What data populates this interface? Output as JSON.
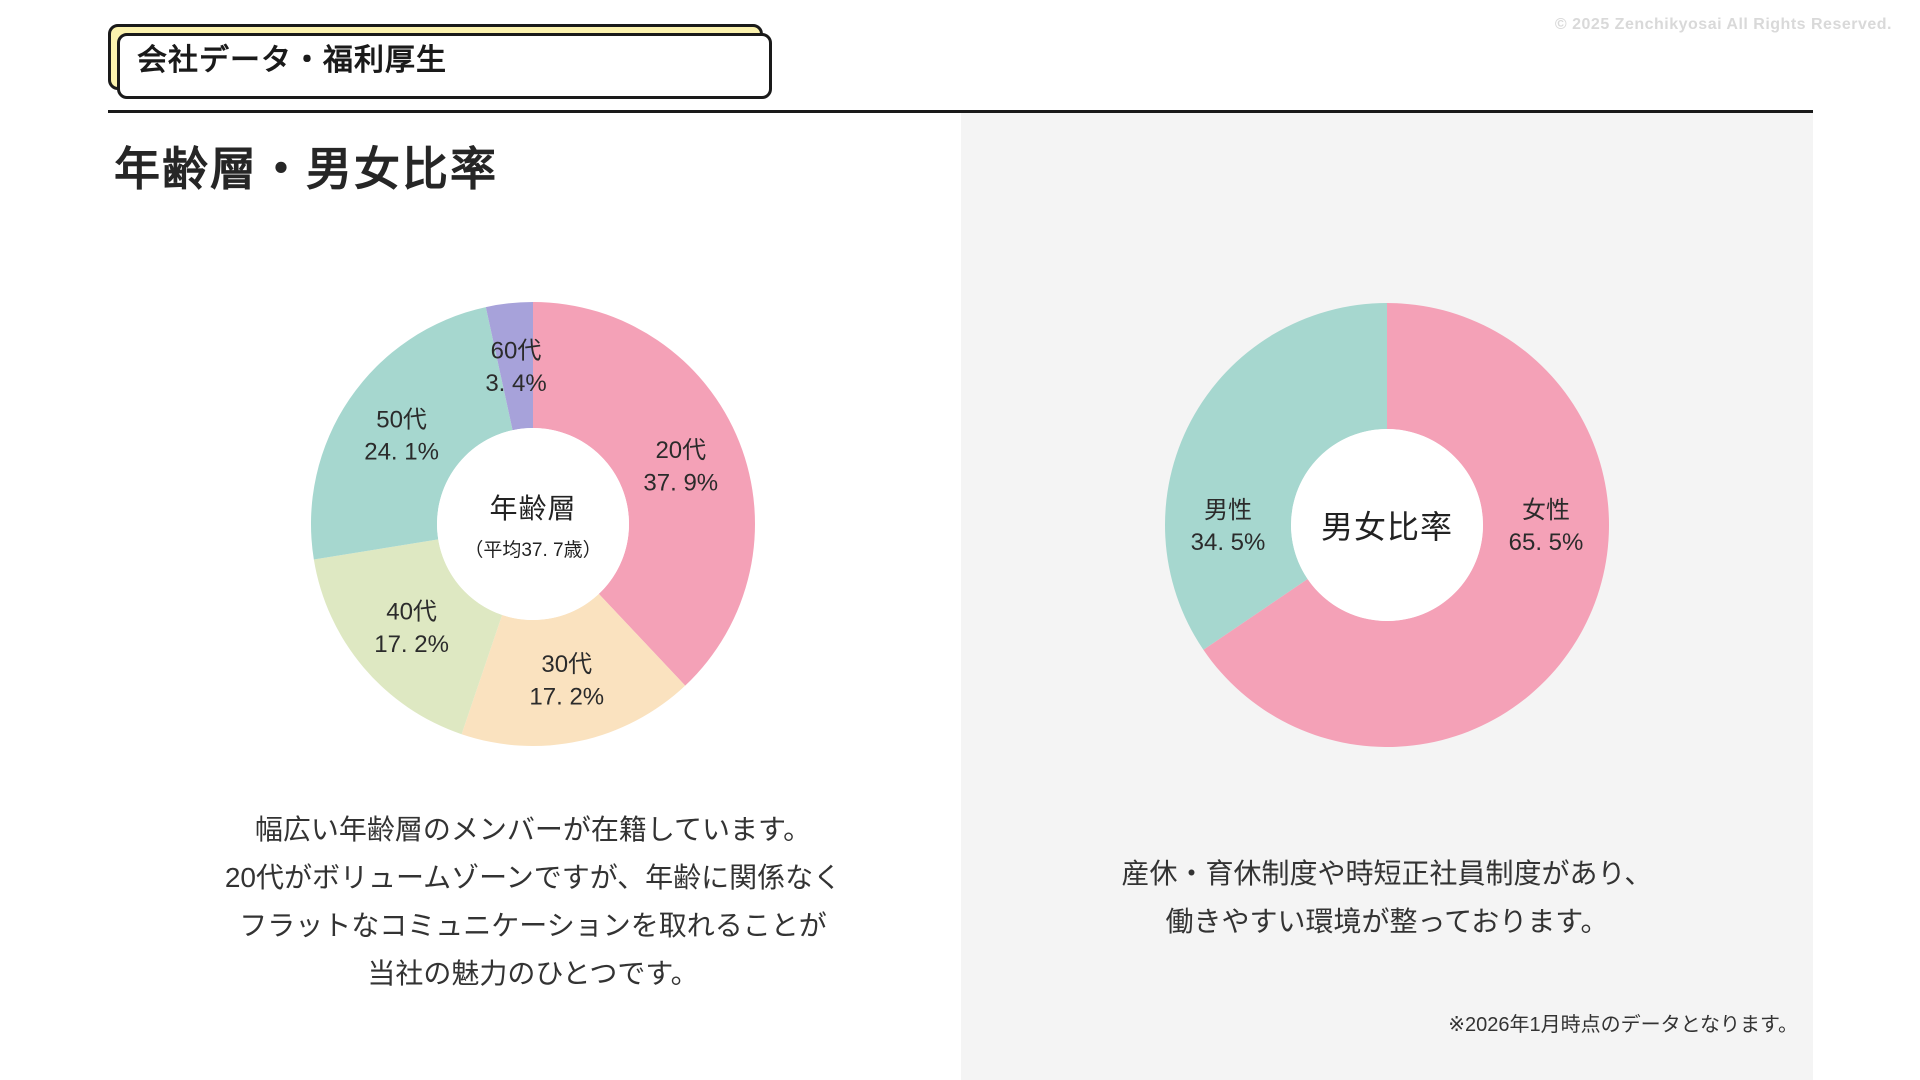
{
  "header": {
    "badge_label": "会社データ・福利厚生",
    "copyright": "© 2025 Zenchikyosai All Rights Reserved.",
    "title": "年齢層・男女比率"
  },
  "colors": {
    "badge_bg": "#FBF2AE",
    "panel_bg": "#F4F4F4",
    "pink": "#F4A1B7",
    "peach": "#FAE2BF",
    "green": "#DEE8C2",
    "teal": "#A6D7CF",
    "purple": "#A7A2DA",
    "ink": "#1A1A1A"
  },
  "chart_data": [
    {
      "type": "pie",
      "style": "donut",
      "title": "年齢層",
      "center_title": "年齢層",
      "center_subtitle": "（平均37. 7歳）",
      "start": "top",
      "direction": "clockwise",
      "legend_position": "none",
      "slices": [
        {
          "label": "20代",
          "value": 37.9,
          "value_label": "37. 9%",
          "color": "#F4A1B7"
        },
        {
          "label": "30代",
          "value": 17.2,
          "value_label": "17. 2%",
          "color": "#FAE2BF"
        },
        {
          "label": "40代",
          "value": 17.2,
          "value_label": "17. 2%",
          "color": "#DEE8C2"
        },
        {
          "label": "50代",
          "value": 24.1,
          "value_label": "24. 1%",
          "color": "#A6D7CF"
        },
        {
          "label": "60代",
          "value": 3.4,
          "value_label": "3. 4%",
          "color": "#A7A2DA"
        }
      ]
    },
    {
      "type": "pie",
      "style": "donut",
      "title": "男女比率",
      "center_title": "男女比率",
      "center_subtitle": "",
      "start": "top",
      "direction": "clockwise",
      "legend_position": "none",
      "slices": [
        {
          "label": "女性",
          "value": 65.5,
          "value_label": "65. 5%",
          "color": "#F4A1B7",
          "label_angle_deg": 90
        },
        {
          "label": "男性",
          "value": 34.5,
          "value_label": "34. 5%",
          "color": "#A6D7CF",
          "label_angle_deg": 270
        }
      ]
    }
  ],
  "sections": [
    {
      "description_lines": [
        "幅広い年齢層のメンバーが在籍しています。",
        "20代がボリュームゾーンですが、年齢に関係なく",
        "フラットなコミュニケーションを取れることが",
        "当社の魅力のひとつです。"
      ]
    },
    {
      "description_lines": [
        "産休・育休制度や時短正社員制度があり、",
        "働きやすい環境が整っております。"
      ]
    }
  ],
  "footnote": "※2026年1月時点のデータとなります。"
}
